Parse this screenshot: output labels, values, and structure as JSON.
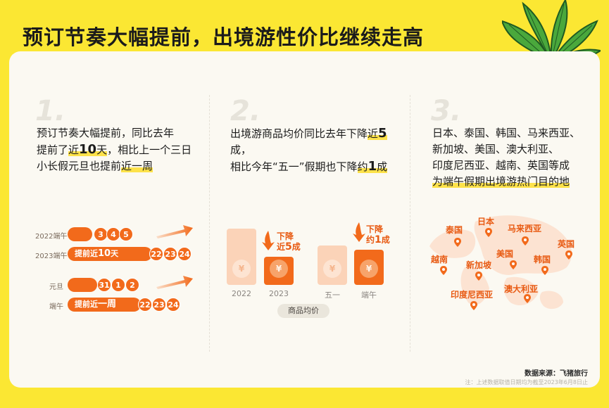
{
  "title": "预订节奏大幅提前，出境游性价比继续走高",
  "section1": {
    "num": "1.",
    "line1": "预订节奏大幅提前，同比去年",
    "line2_a": "提前了",
    "line2_b": "近",
    "line2_c": "10",
    "line2_d": "天",
    "line2_e": "，相比上一个三日",
    "line3_a": "小长假元旦也提前",
    "line3_b": "近一周",
    "rows": [
      {
        "label": "2022端午",
        "days": [
          "3",
          "4",
          "5"
        ]
      },
      {
        "label": "2023端午",
        "pill_a": "提前近",
        "pill_b": "10",
        "pill_c": "天",
        "days": [
          "22",
          "23",
          "24"
        ]
      },
      {
        "label": "元旦",
        "days": [
          "31",
          "1",
          "2"
        ]
      },
      {
        "label": "端午",
        "pill_a": "提前近",
        "pill_b": "一周",
        "days": [
          "22",
          "23",
          "24"
        ]
      }
    ]
  },
  "section2": {
    "num": "2.",
    "line1_a": "出境游商品均价同比去年下降",
    "line1_b": "近",
    "line1_c": "5",
    "line1_d": "成，",
    "line2_a": "相比今年“五一”假期也下降",
    "line2_b": "约",
    "line2_c": "1",
    "line2_d": "成",
    "drop1_a": "下降",
    "drop1_b": "近",
    "drop1_c": "5",
    "drop1_d": "成",
    "drop2_a": "下降",
    "drop2_b": "约",
    "drop2_c": "1",
    "drop2_d": "成",
    "bag_icon": "¥",
    "legend": "商品均价"
  },
  "chart_data": {
    "type": "bar",
    "categories": [
      "2022",
      "2023",
      "五一",
      "端午"
    ],
    "values": [
      10,
      5,
      7,
      6.3
    ],
    "ylim": [
      0,
      10
    ],
    "colors": [
      "#fbd3b8",
      "#f26a1b",
      "#fbd3b8",
      "#f26a1b"
    ]
  },
  "section3": {
    "num": "3.",
    "line1": "日本、泰国、韩国、马来西亚、",
    "line2": "新加坡、美国、澳大利亚、",
    "line3": "印度尼西亚、越南、英国等成",
    "line4": "为端午假期出境游热门目的地",
    "countries": [
      "泰国",
      "日本",
      "马来西亚",
      "英国",
      "越南",
      "新加坡",
      "美国",
      "韩国",
      "澳大利亚",
      "印度尼西亚"
    ]
  },
  "source": "数据来源：飞猪旅行",
  "note": "注：上述数据取值日期均为截至2023年6月8日止",
  "colors": {
    "accent": "#f26a1b",
    "background": "#fbe733",
    "card": "#fbf9f2"
  }
}
